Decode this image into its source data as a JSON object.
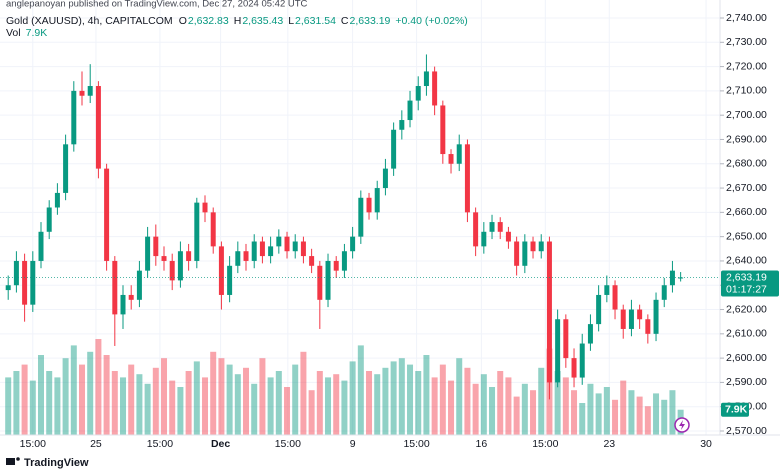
{
  "header": {
    "published": "anglepanoyan published on TradingView.com, Dec 27, 2024 05:42 UTC",
    "symbol": "Gold (XAUUSD), 4h, CAPITALCOM",
    "ohlc": [
      {
        "label": "O",
        "value": "2,632.83"
      },
      {
        "label": "H",
        "value": "2,635.43"
      },
      {
        "label": "L",
        "value": "2,631.54"
      },
      {
        "label": "C",
        "value": "2,633.19"
      }
    ],
    "change": "+0.40 (+0.02%)",
    "volume": {
      "label": "Vol",
      "value": "7.9K"
    }
  },
  "chart_data": {
    "type": "candlestick",
    "up_color": "#089981",
    "down_color": "#f23645",
    "open": [
      2628,
      2630,
      2640,
      2622,
      2640,
      2652,
      2662,
      2668,
      2688,
      2710,
      2708,
      2712,
      2678,
      2640,
      2618,
      2626,
      2624,
      2636,
      2650,
      2642,
      2640,
      2632,
      2644,
      2640,
      2664,
      2660,
      2646,
      2626,
      2638,
      2644,
      2640,
      2648,
      2642,
      2646,
      2650,
      2644,
      2648,
      2642,
      2638,
      2624,
      2640,
      2636,
      2644,
      2650,
      2666,
      2660,
      2670,
      2678,
      2694,
      2698,
      2706,
      2712,
      2718,
      2704,
      2684,
      2680,
      2688,
      2660,
      2646,
      2652,
      2656,
      2652,
      2648,
      2638,
      2648,
      2644,
      2648,
      2590,
      2616,
      2600,
      2592,
      2606,
      2614,
      2626,
      2630,
      2620,
      2612,
      2620,
      2616,
      2610,
      2624,
      2630,
      2632.83
    ],
    "high": [
      2634,
      2644,
      2643,
      2644,
      2656,
      2665,
      2672,
      2692,
      2714,
      2718,
      2721,
      2714,
      2680,
      2642,
      2630,
      2630,
      2640,
      2654,
      2655,
      2646,
      2643,
      2648,
      2647,
      2666,
      2667,
      2662,
      2648,
      2642,
      2648,
      2647,
      2651,
      2650,
      2650,
      2653,
      2652,
      2651,
      2650,
      2645,
      2640,
      2643,
      2642,
      2647,
      2654,
      2669,
      2668,
      2673,
      2682,
      2697,
      2702,
      2710,
      2716,
      2725,
      2720,
      2706,
      2686,
      2692,
      2690,
      2662,
      2656,
      2659,
      2658,
      2654,
      2650,
      2651,
      2650,
      2651,
      2650,
      2620,
      2618,
      2604,
      2610,
      2618,
      2630,
      2634,
      2632,
      2622,
      2624,
      2622,
      2618,
      2627,
      2633,
      2640,
      2635.43
    ],
    "low": [
      2624,
      2627,
      2615,
      2619,
      2637,
      2649,
      2659,
      2665,
      2685,
      2704,
      2705,
      2674,
      2636,
      2605,
      2612,
      2620,
      2621,
      2633,
      2638,
      2636,
      2628,
      2629,
      2636,
      2637,
      2656,
      2643,
      2620,
      2623,
      2635,
      2636,
      2637,
      2639,
      2639,
      2643,
      2641,
      2641,
      2639,
      2635,
      2612,
      2621,
      2633,
      2633,
      2641,
      2647,
      2657,
      2657,
      2667,
      2675,
      2690,
      2695,
      2702,
      2708,
      2700,
      2680,
      2676,
      2677,
      2656,
      2642,
      2643,
      2649,
      2649,
      2645,
      2634,
      2635,
      2641,
      2641,
      2583,
      2588,
      2596,
      2588,
      2589,
      2603,
      2611,
      2623,
      2616,
      2608,
      2609,
      2612,
      2606,
      2607,
      2621,
      2627,
      2631.54
    ],
    "close": [
      2630,
      2640,
      2622,
      2640,
      2652,
      2662,
      2668,
      2688,
      2710,
      2708,
      2712,
      2678,
      2640,
      2618,
      2626,
      2624,
      2636,
      2650,
      2642,
      2640,
      2632,
      2644,
      2640,
      2664,
      2660,
      2646,
      2626,
      2638,
      2644,
      2640,
      2648,
      2642,
      2646,
      2650,
      2644,
      2648,
      2642,
      2638,
      2624,
      2640,
      2636,
      2644,
      2650,
      2666,
      2660,
      2670,
      2678,
      2694,
      2698,
      2706,
      2712,
      2718,
      2704,
      2684,
      2680,
      2688,
      2660,
      2646,
      2652,
      2656,
      2652,
      2648,
      2638,
      2648,
      2644,
      2648,
      2590,
      2616,
      2600,
      2592,
      2606,
      2614,
      2626,
      2630,
      2620,
      2612,
      2620,
      2616,
      2610,
      2624,
      2630,
      2636,
      2633.19
    ],
    "volume": [
      18,
      20,
      22,
      17,
      25,
      20,
      18,
      24,
      28,
      22,
      26,
      30,
      25,
      20,
      18,
      22,
      19,
      16,
      21,
      24,
      17,
      15,
      20,
      23,
      18,
      26,
      24,
      22,
      19,
      21,
      16,
      24,
      18,
      20,
      15,
      22,
      26,
      14,
      20,
      18,
      19,
      17,
      23,
      28,
      20,
      19,
      21,
      23,
      24,
      22,
      20,
      25,
      18,
      22,
      17,
      24,
      21,
      16,
      19,
      15,
      20,
      18,
      12,
      16,
      14,
      21,
      27,
      20,
      18,
      14,
      10,
      16,
      13,
      15,
      11,
      17,
      14,
      12,
      9,
      13,
      11,
      14,
      7.9
    ],
    "volume_lim": [
      0,
      40
    ],
    "volume_badge": "7.9K",
    "last_price": {
      "value": 2633.19,
      "label": "2,633.19"
    },
    "countdown": "01:17:27",
    "xlim": [
      -1,
      86.8
    ],
    "xticks": [
      {
        "value": 3,
        "label": "15:00"
      },
      {
        "value": 10.7,
        "label": "25"
      },
      {
        "value": 18.5,
        "label": "15:00"
      },
      {
        "value": 25.9,
        "label": "Dec"
      },
      {
        "value": 34.1,
        "label": "15:00"
      },
      {
        "value": 42,
        "label": "9"
      },
      {
        "value": 49.8,
        "label": "15:00"
      },
      {
        "value": 57.7,
        "label": "16"
      },
      {
        "value": 65.5,
        "label": "15:00"
      },
      {
        "value": 73.3,
        "label": "23"
      },
      {
        "value": 85.1,
        "label": "30"
      }
    ],
    "ylim": [
      2570,
      2740
    ],
    "yticks": [
      {
        "value": 2570,
        "label": "2,570.00"
      },
      {
        "value": 2580,
        "label": "2,580.00"
      },
      {
        "value": 2590,
        "label": "2,590.00"
      },
      {
        "value": 2600,
        "label": "2,600.00"
      },
      {
        "value": 2610,
        "label": "2,610.00"
      },
      {
        "value": 2620,
        "label": "2,620.00"
      },
      {
        "value": 2630,
        "label": "2,630.00"
      },
      {
        "value": 2640,
        "label": "2,640.00"
      },
      {
        "value": 2650,
        "label": "2,650.00"
      },
      {
        "value": 2660,
        "label": "2,660.00"
      },
      {
        "value": 2670,
        "label": "2,670.00"
      },
      {
        "value": 2680,
        "label": "2,680.00"
      },
      {
        "value": 2690,
        "label": "2,690.00"
      },
      {
        "value": 2700,
        "label": "2,700.00"
      },
      {
        "value": 2710,
        "label": "2,710.00"
      },
      {
        "value": 2720,
        "label": "2,720.00"
      },
      {
        "value": 2730,
        "label": "2,730.00"
      },
      {
        "value": 2740,
        "label": "2,740.00"
      }
    ],
    "grid": true
  },
  "footer": {
    "brand": "TradingView"
  }
}
